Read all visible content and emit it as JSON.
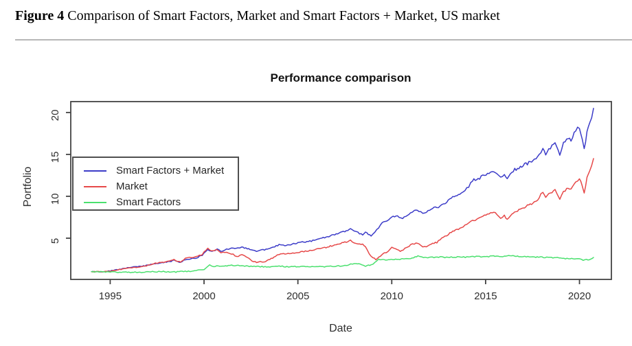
{
  "caption": {
    "label": "Figure 4",
    "text": " Comparison of Smart Factors, Market and Smart Factors + Market, US market"
  },
  "chart_data": {
    "type": "line",
    "title": "Performance comparison",
    "xlabel": "Date",
    "ylabel": "Portfolio",
    "grid": false,
    "legend_position": "topleft",
    "xlim": [
      1992.9,
      2021.7
    ],
    "ylim": [
      0.08,
      21.3
    ],
    "x_ticks": [
      1995,
      2000,
      2005,
      2010,
      2015,
      2020
    ],
    "y_ticks": [
      5,
      10,
      15,
      20
    ],
    "series": [
      {
        "name": "Smart Factors + Market",
        "color": "#3b3bc8",
        "points": [
          [
            1994.0,
            1.0
          ],
          [
            1994.3,
            1.02
          ],
          [
            1994.6,
            1.01
          ],
          [
            1995.0,
            1.1
          ],
          [
            1995.5,
            1.28
          ],
          [
            1996.0,
            1.5
          ],
          [
            1996.4,
            1.58
          ],
          [
            1996.7,
            1.65
          ],
          [
            1997.0,
            1.78
          ],
          [
            1997.4,
            1.95
          ],
          [
            1997.7,
            2.05
          ],
          [
            1998.0,
            2.12
          ],
          [
            1998.4,
            2.35
          ],
          [
            1998.6,
            2.2
          ],
          [
            1998.75,
            2.12
          ],
          [
            1999.0,
            2.45
          ],
          [
            1999.3,
            2.55
          ],
          [
            1999.6,
            2.65
          ],
          [
            1999.9,
            2.95
          ],
          [
            2000.1,
            3.45
          ],
          [
            2000.2,
            3.7
          ],
          [
            2000.35,
            3.45
          ],
          [
            2000.5,
            3.55
          ],
          [
            2000.7,
            3.65
          ],
          [
            2000.9,
            3.45
          ],
          [
            2001.1,
            3.6
          ],
          [
            2001.3,
            3.7
          ],
          [
            2001.55,
            3.85
          ],
          [
            2001.8,
            3.8
          ],
          [
            2002.0,
            3.95
          ],
          [
            2002.3,
            3.75
          ],
          [
            2002.6,
            3.55
          ],
          [
            2002.8,
            3.45
          ],
          [
            2003.0,
            3.55
          ],
          [
            2003.3,
            3.65
          ],
          [
            2003.6,
            3.85
          ],
          [
            2004.0,
            4.2
          ],
          [
            2004.3,
            4.15
          ],
          [
            2004.7,
            4.3
          ],
          [
            2005.0,
            4.45
          ],
          [
            2005.4,
            4.55
          ],
          [
            2005.8,
            4.7
          ],
          [
            2006.2,
            4.95
          ],
          [
            2006.5,
            5.1
          ],
          [
            2006.8,
            5.3
          ],
          [
            2007.2,
            5.6
          ],
          [
            2007.5,
            5.8
          ],
          [
            2007.8,
            6.1
          ],
          [
            2008.0,
            5.9
          ],
          [
            2008.2,
            5.65
          ],
          [
            2008.45,
            5.45
          ],
          [
            2008.6,
            5.65
          ],
          [
            2008.9,
            5.3
          ],
          [
            2009.1,
            5.7
          ],
          [
            2009.3,
            6.3
          ],
          [
            2009.5,
            6.9
          ],
          [
            2009.75,
            7.15
          ],
          [
            2010.0,
            7.5
          ],
          [
            2010.3,
            7.7
          ],
          [
            2010.5,
            7.35
          ],
          [
            2010.75,
            7.6
          ],
          [
            2011.0,
            8.1
          ],
          [
            2011.2,
            8.25
          ],
          [
            2011.45,
            8.25
          ],
          [
            2011.65,
            7.9
          ],
          [
            2011.85,
            8.1
          ],
          [
            2012.1,
            8.55
          ],
          [
            2012.4,
            8.65
          ],
          [
            2012.75,
            9.0
          ],
          [
            2013.1,
            9.7
          ],
          [
            2013.4,
            10.0
          ],
          [
            2013.7,
            10.4
          ],
          [
            2013.9,
            10.7
          ],
          [
            2014.1,
            11.2
          ],
          [
            2014.3,
            11.9
          ],
          [
            2014.6,
            12.1
          ],
          [
            2014.85,
            12.4
          ],
          [
            2015.1,
            12.6
          ],
          [
            2015.35,
            12.85
          ],
          [
            2015.6,
            12.7
          ],
          [
            2015.8,
            12.35
          ],
          [
            2016.0,
            12.45
          ],
          [
            2016.15,
            12.15
          ],
          [
            2016.4,
            13.0
          ],
          [
            2016.7,
            13.35
          ],
          [
            2017.0,
            13.7
          ],
          [
            2017.3,
            14.0
          ],
          [
            2017.6,
            14.35
          ],
          [
            2017.85,
            15.0
          ],
          [
            2018.05,
            15.6
          ],
          [
            2018.2,
            15.0
          ],
          [
            2018.45,
            15.8
          ],
          [
            2018.7,
            16.55
          ],
          [
            2018.95,
            14.8
          ],
          [
            2019.15,
            16.3
          ],
          [
            2019.4,
            16.9
          ],
          [
            2019.55,
            16.6
          ],
          [
            2019.8,
            18.0
          ],
          [
            2020.0,
            18.2
          ],
          [
            2020.15,
            17.0
          ],
          [
            2020.25,
            15.7
          ],
          [
            2020.4,
            17.6
          ],
          [
            2020.55,
            18.6
          ],
          [
            2020.65,
            19.3
          ],
          [
            2020.75,
            20.5
          ]
        ]
      },
      {
        "name": "Market",
        "color": "#e64848",
        "points": [
          [
            1994.0,
            1.0
          ],
          [
            1994.3,
            1.01
          ],
          [
            1994.6,
            1.0
          ],
          [
            1995.0,
            1.08
          ],
          [
            1995.5,
            1.25
          ],
          [
            1996.0,
            1.45
          ],
          [
            1996.4,
            1.52
          ],
          [
            1996.7,
            1.6
          ],
          [
            1997.0,
            1.75
          ],
          [
            1997.4,
            2.0
          ],
          [
            1997.7,
            2.1
          ],
          [
            1998.0,
            2.2
          ],
          [
            1998.4,
            2.45
          ],
          [
            1998.6,
            2.25
          ],
          [
            1998.75,
            2.15
          ],
          [
            1999.0,
            2.6
          ],
          [
            1999.3,
            2.7
          ],
          [
            1999.6,
            2.8
          ],
          [
            1999.9,
            3.05
          ],
          [
            2000.1,
            3.55
          ],
          [
            2000.2,
            3.75
          ],
          [
            2000.35,
            3.45
          ],
          [
            2000.55,
            3.55
          ],
          [
            2000.7,
            3.6
          ],
          [
            2000.9,
            3.3
          ],
          [
            2001.1,
            3.35
          ],
          [
            2001.3,
            3.2
          ],
          [
            2001.55,
            3.05
          ],
          [
            2001.75,
            2.8
          ],
          [
            2002.0,
            3.0
          ],
          [
            2002.3,
            2.75
          ],
          [
            2002.55,
            2.3
          ],
          [
            2002.8,
            2.1
          ],
          [
            2003.0,
            2.25
          ],
          [
            2003.2,
            2.15
          ],
          [
            2003.5,
            2.5
          ],
          [
            2003.8,
            2.8
          ],
          [
            2004.0,
            3.1
          ],
          [
            2004.4,
            3.1
          ],
          [
            2004.8,
            3.25
          ],
          [
            2005.0,
            3.3
          ],
          [
            2005.4,
            3.45
          ],
          [
            2005.8,
            3.6
          ],
          [
            2006.2,
            3.8
          ],
          [
            2006.5,
            3.9
          ],
          [
            2006.8,
            4.1
          ],
          [
            2007.2,
            4.35
          ],
          [
            2007.5,
            4.5
          ],
          [
            2007.8,
            4.7
          ],
          [
            2008.0,
            4.45
          ],
          [
            2008.2,
            4.25
          ],
          [
            2008.45,
            4.3
          ],
          [
            2008.6,
            3.95
          ],
          [
            2008.8,
            3.1
          ],
          [
            2009.0,
            2.7
          ],
          [
            2009.15,
            2.45
          ],
          [
            2009.4,
            2.9
          ],
          [
            2009.6,
            3.2
          ],
          [
            2009.8,
            3.4
          ],
          [
            2010.0,
            3.85
          ],
          [
            2010.2,
            3.75
          ],
          [
            2010.45,
            3.45
          ],
          [
            2010.7,
            3.75
          ],
          [
            2011.0,
            4.2
          ],
          [
            2011.2,
            4.35
          ],
          [
            2011.45,
            4.4
          ],
          [
            2011.65,
            3.9
          ],
          [
            2011.85,
            4.0
          ],
          [
            2012.1,
            4.35
          ],
          [
            2012.4,
            4.5
          ],
          [
            2012.75,
            5.1
          ],
          [
            2013.1,
            5.6
          ],
          [
            2013.4,
            5.95
          ],
          [
            2013.7,
            6.3
          ],
          [
            2013.9,
            6.55
          ],
          [
            2014.1,
            6.9
          ],
          [
            2014.3,
            7.1
          ],
          [
            2014.6,
            7.3
          ],
          [
            2014.85,
            7.6
          ],
          [
            2015.1,
            7.95
          ],
          [
            2015.35,
            8.1
          ],
          [
            2015.6,
            7.9
          ],
          [
            2015.8,
            7.4
          ],
          [
            2016.0,
            7.65
          ],
          [
            2016.15,
            7.25
          ],
          [
            2016.4,
            7.9
          ],
          [
            2016.7,
            8.25
          ],
          [
            2017.0,
            8.65
          ],
          [
            2017.3,
            8.95
          ],
          [
            2017.6,
            9.3
          ],
          [
            2017.85,
            9.8
          ],
          [
            2018.05,
            10.6
          ],
          [
            2018.2,
            10.0
          ],
          [
            2018.45,
            10.35
          ],
          [
            2018.7,
            10.8
          ],
          [
            2018.95,
            9.6
          ],
          [
            2019.15,
            10.6
          ],
          [
            2019.4,
            11.0
          ],
          [
            2019.55,
            10.8
          ],
          [
            2019.8,
            11.6
          ],
          [
            2020.0,
            12.1
          ],
          [
            2020.15,
            11.2
          ],
          [
            2020.25,
            10.4
          ],
          [
            2020.4,
            12.2
          ],
          [
            2020.55,
            13.0
          ],
          [
            2020.65,
            13.7
          ],
          [
            2020.75,
            14.5
          ]
        ]
      },
      {
        "name": "Smart Factors",
        "color": "#4ae06e",
        "points": [
          [
            1994.0,
            1.0
          ],
          [
            1994.5,
            0.99
          ],
          [
            1995.0,
            0.97
          ],
          [
            1995.5,
            0.95
          ],
          [
            1996.0,
            0.94
          ],
          [
            1996.5,
            0.93
          ],
          [
            1997.0,
            0.96
          ],
          [
            1997.5,
            1.0
          ],
          [
            1998.0,
            1.0
          ],
          [
            1998.5,
            0.97
          ],
          [
            1999.0,
            1.05
          ],
          [
            1999.5,
            1.1
          ],
          [
            2000.0,
            1.28
          ],
          [
            2000.3,
            1.82
          ],
          [
            2000.5,
            1.6
          ],
          [
            2000.75,
            1.72
          ],
          [
            2001.0,
            1.65
          ],
          [
            2001.3,
            1.72
          ],
          [
            2001.55,
            1.76
          ],
          [
            2002.0,
            1.7
          ],
          [
            2002.5,
            1.65
          ],
          [
            2003.0,
            1.6
          ],
          [
            2003.5,
            1.6
          ],
          [
            2004.0,
            1.65
          ],
          [
            2004.5,
            1.6
          ],
          [
            2005.0,
            1.6
          ],
          [
            2005.5,
            1.6
          ],
          [
            2006.0,
            1.63
          ],
          [
            2006.5,
            1.6
          ],
          [
            2007.0,
            1.65
          ],
          [
            2007.5,
            1.72
          ],
          [
            2007.9,
            1.95
          ],
          [
            2008.1,
            2.0
          ],
          [
            2008.4,
            1.8
          ],
          [
            2008.6,
            1.7
          ],
          [
            2008.9,
            1.78
          ],
          [
            2009.1,
            2.1
          ],
          [
            2009.3,
            2.45
          ],
          [
            2009.6,
            2.4
          ],
          [
            2009.9,
            2.45
          ],
          [
            2010.2,
            2.5
          ],
          [
            2010.5,
            2.5
          ],
          [
            2010.8,
            2.58
          ],
          [
            2011.0,
            2.62
          ],
          [
            2011.4,
            2.85
          ],
          [
            2011.7,
            2.7
          ],
          [
            2012.0,
            2.7
          ],
          [
            2012.5,
            2.76
          ],
          [
            2013.0,
            2.7
          ],
          [
            2013.5,
            2.75
          ],
          [
            2014.0,
            2.75
          ],
          [
            2014.5,
            2.8
          ],
          [
            2015.0,
            2.8
          ],
          [
            2015.5,
            2.86
          ],
          [
            2016.0,
            2.8
          ],
          [
            2016.3,
            2.92
          ],
          [
            2016.7,
            2.85
          ],
          [
            2017.0,
            2.8
          ],
          [
            2017.5,
            2.76
          ],
          [
            2018.0,
            2.72
          ],
          [
            2018.5,
            2.7
          ],
          [
            2019.0,
            2.62
          ],
          [
            2019.5,
            2.56
          ],
          [
            2020.0,
            2.5
          ],
          [
            2020.2,
            2.35
          ],
          [
            2020.45,
            2.45
          ],
          [
            2020.6,
            2.5
          ],
          [
            2020.75,
            2.7
          ]
        ]
      }
    ]
  }
}
